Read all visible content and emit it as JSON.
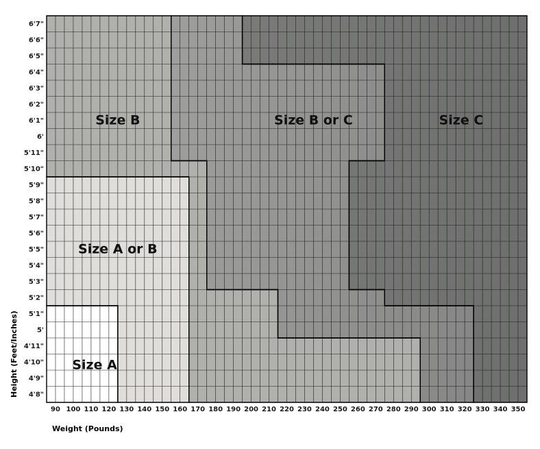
{
  "chart_data": {
    "type": "heatmap",
    "title": "",
    "xlabel": "Weight (Pounds)",
    "ylabel": "Height (Feet/Inches)",
    "x_ticks": [
      90,
      100,
      110,
      120,
      130,
      140,
      150,
      160,
      170,
      180,
      190,
      200,
      210,
      220,
      230,
      240,
      250,
      260,
      270,
      280,
      290,
      300,
      310,
      320,
      330,
      340,
      350
    ],
    "x_range": [
      85,
      355
    ],
    "y_ticks": [
      "4'8\"",
      "4'9\"",
      "4'10\"",
      "4'11\"",
      "5'",
      "5'1\"",
      "5'2\"",
      "5'3\"",
      "5'4\"",
      "5'5\"",
      "5'6\"",
      "5'7\"",
      "5'8\"",
      "5'9\"",
      "5'10\"",
      "5'11\"",
      "6'",
      "6'1\"",
      "6'2\"",
      "6'3\"",
      "6'4\"",
      "6'5\"",
      "6'6\"",
      "6'7\""
    ],
    "y_inches": [
      56,
      57,
      58,
      59,
      60,
      61,
      62,
      63,
      64,
      65,
      66,
      67,
      68,
      69,
      70,
      71,
      72,
      73,
      74,
      75,
      76,
      77,
      78,
      79
    ],
    "y_range": [
      55.5,
      79.5
    ],
    "grid": true,
    "colors": {
      "size_a": "#ffffff",
      "size_a_or_b": "#dfdedb",
      "size_b": "#b0b1ac",
      "size_b_or_c": "#919191",
      "size_c": "#6e6f6e",
      "gradient_start": "#c3c4c0",
      "gradient_end": "#6f706f",
      "grid": "#1f1f1f"
    },
    "regions": [
      {
        "label": "Size A",
        "fill": "size_a",
        "label_weight": 112,
        "label_height": 57.8,
        "polygon": [
          [
            85,
            55.5
          ],
          [
            125,
            55.5
          ],
          [
            125,
            61.5
          ],
          [
            85,
            61.5
          ]
        ]
      },
      {
        "label": "Size A or B",
        "fill": "size_a_or_b",
        "label_weight": 125,
        "label_height": 65.0,
        "polygon": [
          [
            85,
            61.5
          ],
          [
            125,
            61.5
          ],
          [
            125,
            55.5
          ],
          [
            165,
            55.5
          ],
          [
            165,
            69.5
          ],
          [
            85,
            69.5
          ]
        ]
      },
      {
        "label": "Size B",
        "fill": "size_b",
        "label_weight": 125,
        "label_height": 73.0,
        "polygon": [
          [
            85,
            69.5
          ],
          [
            165,
            69.5
          ],
          [
            165,
            55.5
          ],
          [
            295,
            55.5
          ],
          [
            295,
            59.5
          ],
          [
            215,
            59.5
          ],
          [
            215,
            62.5
          ],
          [
            175,
            62.5
          ],
          [
            175,
            70.5
          ],
          [
            155,
            70.5
          ],
          [
            155,
            79.5
          ],
          [
            85,
            79.5
          ]
        ]
      },
      {
        "label": "Size B or C",
        "fill": "size_b_or_c",
        "label_weight": 235,
        "label_height": 73.0,
        "polygon": [
          [
            155,
            79.5
          ],
          [
            195,
            79.5
          ],
          [
            195,
            76.5
          ],
          [
            275,
            76.5
          ],
          [
            275,
            70.5
          ],
          [
            255,
            70.5
          ],
          [
            255,
            62.5
          ],
          [
            275,
            62.5
          ],
          [
            275,
            61.5
          ],
          [
            325,
            61.5
          ],
          [
            325,
            55.5
          ],
          [
            295,
            55.5
          ],
          [
            295,
            59.5
          ],
          [
            215,
            59.5
          ],
          [
            215,
            62.5
          ],
          [
            175,
            62.5
          ],
          [
            175,
            70.5
          ],
          [
            155,
            70.5
          ]
        ]
      },
      {
        "label": "Size C",
        "fill": "size_c",
        "label_weight": 318,
        "label_height": 73.0,
        "polygon": [
          [
            195,
            79.5
          ],
          [
            355,
            79.5
          ],
          [
            355,
            55.5
          ],
          [
            325,
            55.5
          ],
          [
            325,
            61.5
          ],
          [
            275,
            61.5
          ],
          [
            275,
            62.5
          ],
          [
            255,
            62.5
          ],
          [
            255,
            70.5
          ],
          [
            275,
            70.5
          ],
          [
            275,
            76.5
          ],
          [
            195,
            76.5
          ]
        ]
      }
    ]
  }
}
